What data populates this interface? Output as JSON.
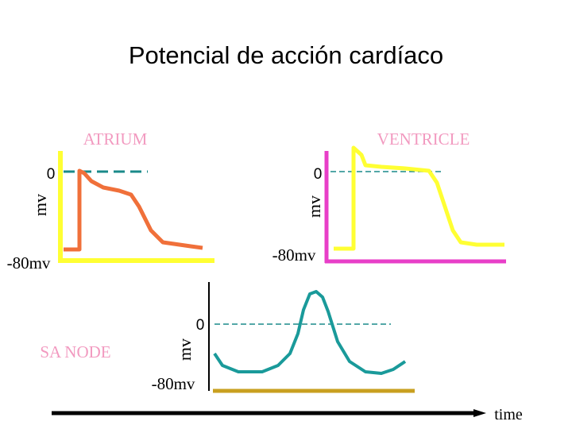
{
  "title": "Potencial de acción cardíaco",
  "atrium": {
    "label": "ATRIUM",
    "zero": "0",
    "unit": "mv",
    "min": "-80mv"
  },
  "ventricle": {
    "label": "VENTRICLE",
    "zero": "0",
    "unit": "mv",
    "min": "-80mv"
  },
  "sa_node": {
    "label": "SA NODE",
    "zero": "0",
    "unit": "mv",
    "min": "-80mv"
  },
  "time_label": "time"
}
